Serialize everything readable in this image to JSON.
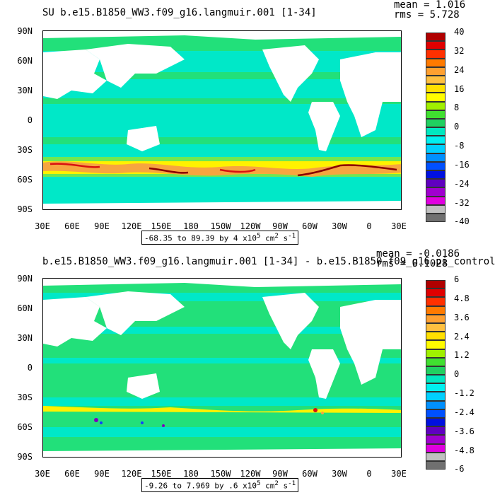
{
  "lat_labels": [
    "90N",
    "60N",
    "30N",
    "0",
    "30S",
    "60S",
    "90S"
  ],
  "lon_labels": [
    "30E",
    "60E",
    "90E",
    "120E",
    "150E",
    "180",
    "150W",
    "120W",
    "90W",
    "60W",
    "30W",
    "0",
    "30E"
  ],
  "colors": {
    "land": "#ffffff",
    "ocean_base": "#00e8c8",
    "ocean_green": "#22e07a",
    "ocean_lime": "#6ee852",
    "yellow": "#fff200",
    "orange": "#f7a540",
    "red": "#d81010",
    "darkred": "#8b0000",
    "blue": "#1040ff",
    "purple": "#7a00c0"
  },
  "panels": [
    {
      "title": "SU b.e15.B1850_WW3.f09_g16.langmuir.001 [1-34]",
      "stats": {
        "mean": "mean = 1.016",
        "rms": "rms = 5.728"
      },
      "range": {
        "text": "-68.35 to 89.39 by 4 x10",
        "exp": "5",
        "unit": "cm",
        "unit_exp": "2",
        "s": "s",
        "s_exp": "-1"
      },
      "colorbar": {
        "labels": [
          "40",
          "32",
          "24",
          "16",
          "8",
          "0",
          "-8",
          "-16",
          "-24",
          "-32",
          "-40"
        ],
        "colors": [
          "#b00000",
          "#e00000",
          "#ff3000",
          "#ff7a00",
          "#ffa030",
          "#ffc040",
          "#ffe000",
          "#fffc00",
          "#a0f000",
          "#40e030",
          "#20d060",
          "#00e8c0",
          "#00f0f0",
          "#00d0ff",
          "#0090ff",
          "#0050ff",
          "#0010e0",
          "#6000c0",
          "#a000d0",
          "#e000e0",
          "#c0c0c0",
          "#707070"
        ]
      }
    },
    {
      "title": "b.e15.B1850_WW3.f09_g16.langmuir.001 [1-34] - b.e15.B1850.f09_g16.pi_control",
      "stats": {
        "mean": "mean = -0.0186",
        "rms": "rms = 0.1028"
      },
      "range": {
        "text": "-9.26 to 7.969 by .6 x10",
        "exp": "5",
        "unit": "cm",
        "unit_exp": "2",
        "s": "s",
        "s_exp": "-1"
      },
      "colorbar": {
        "labels": [
          "6",
          "4.8",
          "3.6",
          "2.4",
          "1.2",
          "0",
          "-1.2",
          "-2.4",
          "-3.6",
          "-4.8",
          "-6"
        ],
        "colors": [
          "#b00000",
          "#e00000",
          "#ff3000",
          "#ff7a00",
          "#ffa030",
          "#ffc040",
          "#ffe000",
          "#fffc00",
          "#a0f000",
          "#40e030",
          "#20d060",
          "#00e8c0",
          "#00f0f0",
          "#00d0ff",
          "#0090ff",
          "#0050ff",
          "#0010e0",
          "#6000c0",
          "#a000d0",
          "#e000e0",
          "#c0c0c0",
          "#707070"
        ]
      }
    }
  ]
}
